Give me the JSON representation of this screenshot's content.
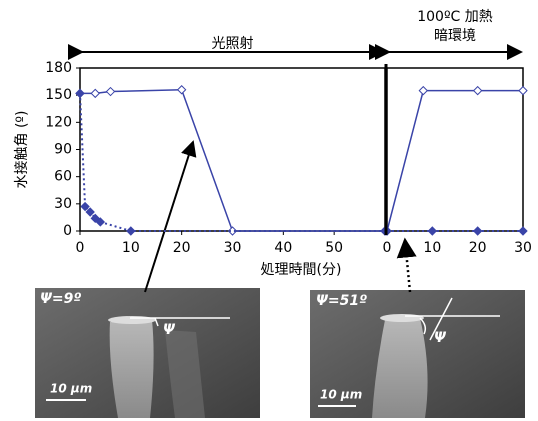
{
  "chart_data": [
    {
      "type": "line",
      "ylabel": "水接触角 (º)",
      "xlabel": "処理時間(分)",
      "annotation": "光照射",
      "xlim": [
        0,
        60
      ],
      "xticks": [
        0,
        10,
        20,
        30,
        40,
        50
      ],
      "ylim": [
        0,
        180
      ],
      "yticks": [
        0,
        30,
        60,
        90,
        120,
        150,
        180
      ],
      "series": [
        {
          "color": "#3a44a8",
          "marker": "open",
          "dashed": false,
          "x": [
            0,
            3,
            6,
            20,
            30,
            60
          ],
          "values": [
            152,
            152,
            154,
            156,
            0,
            0
          ]
        },
        {
          "color": "#3a44a8",
          "marker": "filled",
          "dashed": true,
          "x": [
            0,
            1,
            2,
            3,
            4,
            10,
            60
          ],
          "values": [
            152,
            27,
            21,
            14,
            10,
            0,
            0
          ]
        }
      ]
    },
    {
      "type": "line",
      "annotation": [
        "100ºC 加熱",
        "暗環境"
      ],
      "xlim": [
        0,
        30
      ],
      "xticks": [
        0,
        10,
        20,
        30
      ],
      "ylim": [
        0,
        180
      ],
      "series": [
        {
          "color": "#3a44a8",
          "marker": "open",
          "dashed": false,
          "x": [
            0,
            8,
            20,
            30
          ],
          "values": [
            0,
            155,
            155,
            155
          ]
        },
        {
          "color": "#3a44a8",
          "marker": "filled",
          "dashed": true,
          "x": [
            0,
            10,
            20,
            30
          ],
          "values": [
            0,
            0,
            0,
            0
          ]
        }
      ]
    }
  ],
  "images": [
    {
      "angle": "Ψ=9º",
      "psi": "Ψ",
      "scale": "10 μm"
    },
    {
      "angle": "Ψ=51º",
      "psi": "Ψ",
      "scale": "10 μm"
    }
  ]
}
